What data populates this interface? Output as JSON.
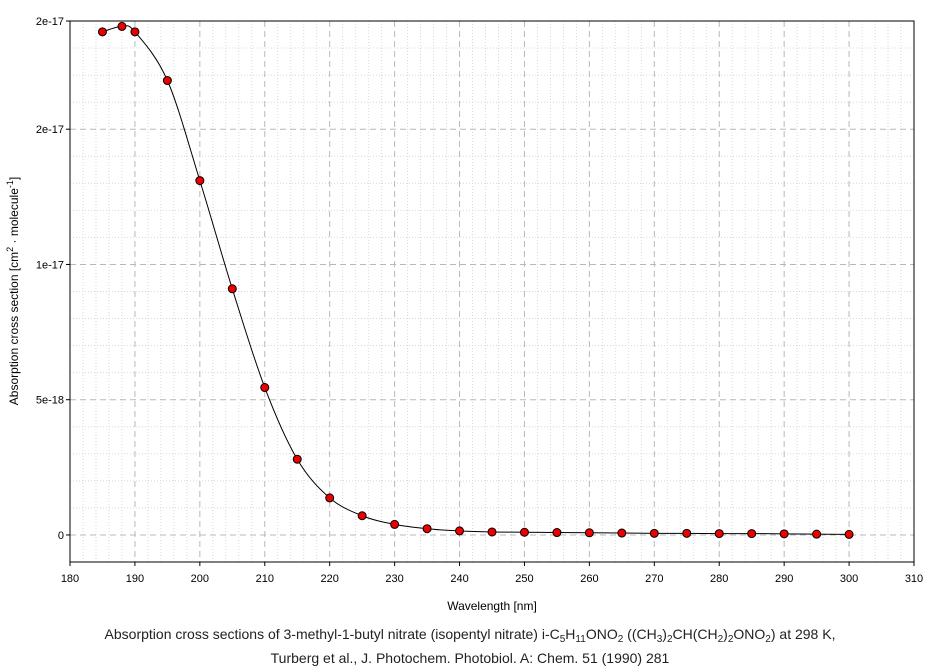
{
  "chart_data": {
    "type": "line",
    "xlabel": "Wavelength [nm]",
    "ylabel_main": "Absorption cross section [cm",
    "ylabel_sup1": "2",
    "ylabel_mid": " · molecule",
    "ylabel_sup2": "-1",
    "ylabel_end": "]",
    "xlim": [
      180,
      310
    ],
    "ylim": [
      -1e-18,
      1.9e-17
    ],
    "x_ticks": [
      {
        "value": 180,
        "label": "180"
      },
      {
        "value": 190,
        "label": "190"
      },
      {
        "value": 200,
        "label": "200"
      },
      {
        "value": 210,
        "label": "210"
      },
      {
        "value": 220,
        "label": "220"
      },
      {
        "value": 230,
        "label": "230"
      },
      {
        "value": 240,
        "label": "240"
      },
      {
        "value": 250,
        "label": "250"
      },
      {
        "value": 260,
        "label": "260"
      },
      {
        "value": 270,
        "label": "270"
      },
      {
        "value": 280,
        "label": "280"
      },
      {
        "value": 290,
        "label": "290"
      },
      {
        "value": 300,
        "label": "300"
      },
      {
        "value": 310,
        "label": "310"
      }
    ],
    "y_ticks": [
      {
        "value": 0,
        "label": "0"
      },
      {
        "value": 5e-18,
        "label": "5e-18"
      },
      {
        "value": 1e-17,
        "label": "1e-17"
      },
      {
        "value": 1.5e-17,
        "label": "2e-17"
      },
      {
        "value": 1.9e-17,
        "label": "2e-17"
      }
    ],
    "grid": true,
    "marker_color": "#ee0000",
    "line_color": "#000000",
    "x": [
      185,
      188,
      190,
      195,
      200,
      205,
      210,
      215,
      220,
      225,
      230,
      235,
      240,
      245,
      250,
      255,
      260,
      265,
      270,
      275,
      280,
      285,
      290,
      295,
      300
    ],
    "y": [
      1.86e-17,
      1.88e-17,
      1.86e-17,
      1.68e-17,
      1.31e-17,
      9.1e-18,
      5.45e-18,
      2.8e-18,
      1.37e-18,
      7.1e-19,
      3.9e-19,
      2.3e-19,
      1.5e-19,
      1.1e-19,
      1e-19,
      9e-20,
      8e-20,
      7e-20,
      6e-20,
      6e-20,
      5e-20,
      5e-20,
      4e-20,
      3e-20,
      2e-20
    ]
  },
  "caption": {
    "line1_a": "Absorption cross sections of 3-methyl-1-butyl nitrate (isopentyl nitrate) i-C",
    "s1": "5",
    "f1": "H",
    "s2": "11",
    "f2": "ONO",
    "s3": "2",
    "f3": " ((CH",
    "s4": "3",
    "f4": ")",
    "s5": "2",
    "f5": "CH(CH",
    "s6": "2",
    "f6": ")",
    "s7": "2",
    "f7": "ONO",
    "s8": "2",
    "f8": ") at 298 K,",
    "line2": "Turberg et al., J. Photochem. Photobiol. A: Chem. 51 (1990) 281"
  }
}
